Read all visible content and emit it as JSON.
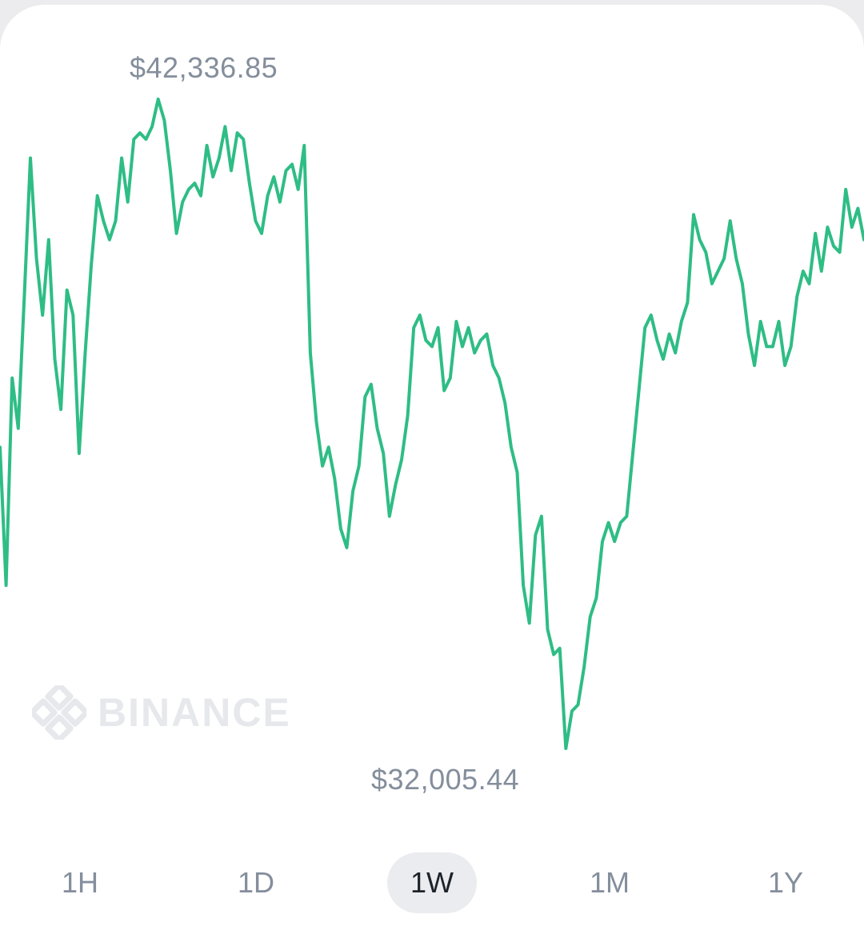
{
  "chart_data": {
    "type": "line",
    "title": "",
    "xlabel": "",
    "ylabel": "",
    "ylim": [
      32005.44,
      42336.85
    ],
    "high_label": "$42,336.85",
    "low_label": "$32,005.44",
    "line_color": "#2ebd85",
    "series": [
      {
        "values": [
          36800,
          34600,
          37900,
          37100,
          39200,
          41400,
          39800,
          38900,
          40100,
          38200,
          37400,
          39300,
          38900,
          36700,
          38300,
          39700,
          40800,
          40400,
          40100,
          40400,
          41400,
          40700,
          41700,
          41800,
          41700,
          41900,
          42336.85,
          42000,
          41200,
          40200,
          40700,
          40900,
          41000,
          40800,
          41600,
          41100,
          41400,
          41900,
          41200,
          41800,
          41700,
          41000,
          40400,
          40200,
          40800,
          41100,
          40700,
          41200,
          41300,
          40900,
          41600,
          38300,
          37200,
          36500,
          36800,
          36300,
          35500,
          35200,
          36100,
          36500,
          37600,
          37800,
          37100,
          36700,
          35700,
          36200,
          36600,
          37300,
          38700,
          38900,
          38500,
          38400,
          38700,
          37700,
          37900,
          38800,
          38400,
          38700,
          38300,
          38500,
          38600,
          38100,
          37900,
          37500,
          36800,
          36400,
          34600,
          34000,
          35400,
          35700,
          33900,
          33500,
          33600,
          32005.44,
          32600,
          32700,
          33300,
          34100,
          34400,
          35300,
          35600,
          35300,
          35600,
          35700,
          36700,
          37700,
          38700,
          38900,
          38500,
          38200,
          38600,
          38300,
          38800,
          39100,
          40500,
          40100,
          39900,
          39400,
          39600,
          39800,
          40400,
          39800,
          39400,
          38600,
          38100,
          38800,
          38400,
          38400,
          38800,
          38100,
          38400,
          39200,
          39600,
          39400,
          40200,
          39600,
          40300,
          40000,
          39900,
          40900,
          40300,
          40600,
          40100
        ]
      }
    ]
  },
  "watermark": {
    "text": "BINANCE",
    "icon": "binance-logo-icon"
  },
  "time_range_tabs": [
    {
      "label": "1H",
      "active": false
    },
    {
      "label": "1D",
      "active": false
    },
    {
      "label": "1W",
      "active": true
    },
    {
      "label": "1M",
      "active": false
    },
    {
      "label": "1Y",
      "active": false
    }
  ]
}
